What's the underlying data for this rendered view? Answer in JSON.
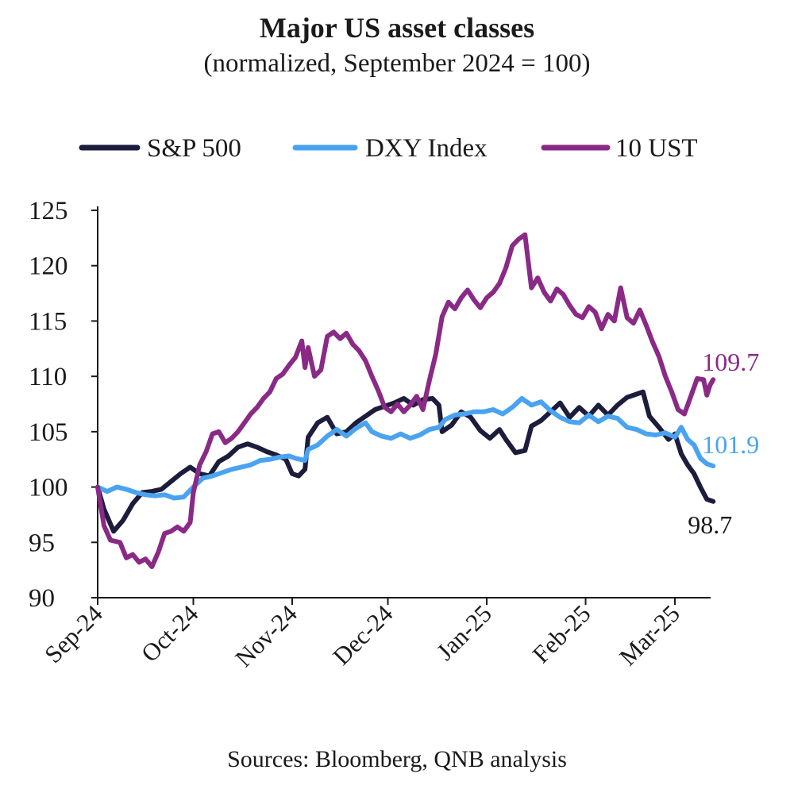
{
  "chart_data": {
    "type": "line",
    "title": "Major US asset classes",
    "subtitle": "(normalized, September 2024 = 100)",
    "source": "Sources: Bloomberg, QNB analysis",
    "ylim": [
      90,
      125
    ],
    "yticks": [
      90,
      95,
      100,
      105,
      110,
      115,
      120,
      125
    ],
    "xlim": [
      "2024-09-01",
      "2025-03-14"
    ],
    "xticks": [
      {
        "date": "2024-09-01",
        "label": "Sep-24"
      },
      {
        "date": "2024-10-01",
        "label": "Oct-24"
      },
      {
        "date": "2024-11-01",
        "label": "Nov-24"
      },
      {
        "date": "2024-12-01",
        "label": "Dec-24"
      },
      {
        "date": "2025-01-01",
        "label": "Jan-25"
      },
      {
        "date": "2025-02-01",
        "label": "Feb-25"
      },
      {
        "date": "2025-03-01",
        "label": "Mar-25"
      }
    ],
    "legend_position": "top",
    "grid": false,
    "series": [
      {
        "name": "S&P 500",
        "color": "#1c1c3c",
        "end_label": "98.7",
        "points": [
          [
            "2024-09-01",
            100.0
          ],
          [
            "2024-09-03",
            98.0
          ],
          [
            "2024-09-06",
            96.0
          ],
          [
            "2024-09-09",
            97.0
          ],
          [
            "2024-09-12",
            98.5
          ],
          [
            "2024-09-15",
            99.5
          ],
          [
            "2024-09-18",
            99.6
          ],
          [
            "2024-09-21",
            99.8
          ],
          [
            "2024-09-24",
            100.5
          ],
          [
            "2024-09-27",
            101.2
          ],
          [
            "2024-09-30",
            101.8
          ],
          [
            "2024-10-03",
            101.2
          ],
          [
            "2024-10-06",
            101.0
          ],
          [
            "2024-10-09",
            102.3
          ],
          [
            "2024-10-12",
            102.8
          ],
          [
            "2024-10-15",
            103.6
          ],
          [
            "2024-10-18",
            103.9
          ],
          [
            "2024-10-21",
            103.6
          ],
          [
            "2024-10-24",
            103.2
          ],
          [
            "2024-10-27",
            102.9
          ],
          [
            "2024-10-30",
            102.5
          ],
          [
            "2024-11-01",
            101.2
          ],
          [
            "2024-11-03",
            101.0
          ],
          [
            "2024-11-05",
            101.6
          ],
          [
            "2024-11-06",
            104.5
          ],
          [
            "2024-11-09",
            105.8
          ],
          [
            "2024-11-12",
            106.3
          ],
          [
            "2024-11-15",
            104.8
          ],
          [
            "2024-11-18",
            105.0
          ],
          [
            "2024-11-21",
            105.8
          ],
          [
            "2024-11-24",
            106.4
          ],
          [
            "2024-11-27",
            107.0
          ],
          [
            "2024-11-30",
            107.3
          ],
          [
            "2024-12-03",
            107.6
          ],
          [
            "2024-12-06",
            108.0
          ],
          [
            "2024-12-09",
            107.4
          ],
          [
            "2024-12-12",
            107.9
          ],
          [
            "2024-12-15",
            108.0
          ],
          [
            "2024-12-17",
            107.4
          ],
          [
            "2024-12-18",
            105.0
          ],
          [
            "2024-12-21",
            105.6
          ],
          [
            "2024-12-24",
            106.8
          ],
          [
            "2024-12-27",
            106.3
          ],
          [
            "2024-12-30",
            105.1
          ],
          [
            "2025-01-02",
            104.4
          ],
          [
            "2025-01-05",
            105.2
          ],
          [
            "2025-01-07",
            104.3
          ],
          [
            "2025-01-10",
            103.1
          ],
          [
            "2025-01-13",
            103.3
          ],
          [
            "2025-01-15",
            105.5
          ],
          [
            "2025-01-18",
            106.0
          ],
          [
            "2025-01-21",
            106.8
          ],
          [
            "2025-01-24",
            107.6
          ],
          [
            "2025-01-27",
            106.3
          ],
          [
            "2025-01-30",
            107.2
          ],
          [
            "2025-02-02",
            106.4
          ],
          [
            "2025-02-05",
            107.4
          ],
          [
            "2025-02-08",
            106.5
          ],
          [
            "2025-02-11",
            107.4
          ],
          [
            "2025-02-14",
            108.1
          ],
          [
            "2025-02-17",
            108.4
          ],
          [
            "2025-02-19",
            108.6
          ],
          [
            "2025-02-21",
            106.4
          ],
          [
            "2025-02-24",
            105.4
          ],
          [
            "2025-02-27",
            104.3
          ],
          [
            "2025-03-01",
            104.8
          ],
          [
            "2025-03-03",
            103.0
          ],
          [
            "2025-03-05",
            102.0
          ],
          [
            "2025-03-07",
            101.2
          ],
          [
            "2025-03-09",
            100.0
          ],
          [
            "2025-03-11",
            98.9
          ],
          [
            "2025-03-13",
            98.7
          ]
        ]
      },
      {
        "name": "DXY Index",
        "color": "#4aa3f0",
        "end_label": "101.9",
        "points": [
          [
            "2024-09-01",
            100.0
          ],
          [
            "2024-09-04",
            99.6
          ],
          [
            "2024-09-07",
            100.0
          ],
          [
            "2024-09-10",
            99.8
          ],
          [
            "2024-09-13",
            99.5
          ],
          [
            "2024-09-16",
            99.3
          ],
          [
            "2024-09-19",
            99.2
          ],
          [
            "2024-09-22",
            99.3
          ],
          [
            "2024-09-25",
            99.0
          ],
          [
            "2024-09-28",
            99.1
          ],
          [
            "2024-10-01",
            100.0
          ],
          [
            "2024-10-04",
            100.8
          ],
          [
            "2024-10-07",
            101.0
          ],
          [
            "2024-10-10",
            101.3
          ],
          [
            "2024-10-13",
            101.6
          ],
          [
            "2024-10-16",
            101.8
          ],
          [
            "2024-10-19",
            102.0
          ],
          [
            "2024-10-22",
            102.4
          ],
          [
            "2024-10-25",
            102.5
          ],
          [
            "2024-10-28",
            102.7
          ],
          [
            "2024-10-31",
            102.8
          ],
          [
            "2024-11-02",
            102.6
          ],
          [
            "2024-11-05",
            102.4
          ],
          [
            "2024-11-06",
            103.4
          ],
          [
            "2024-11-09",
            103.8
          ],
          [
            "2024-11-12",
            104.6
          ],
          [
            "2024-11-15",
            105.2
          ],
          [
            "2024-11-18",
            104.6
          ],
          [
            "2024-11-21",
            105.3
          ],
          [
            "2024-11-24",
            105.8
          ],
          [
            "2024-11-26",
            105.0
          ],
          [
            "2024-11-29",
            104.6
          ],
          [
            "2024-12-02",
            104.4
          ],
          [
            "2024-12-05",
            104.8
          ],
          [
            "2024-12-08",
            104.4
          ],
          [
            "2024-12-11",
            104.7
          ],
          [
            "2024-12-14",
            105.2
          ],
          [
            "2024-12-17",
            105.4
          ],
          [
            "2024-12-19",
            106.1
          ],
          [
            "2024-12-22",
            106.5
          ],
          [
            "2024-12-25",
            106.6
          ],
          [
            "2024-12-28",
            106.8
          ],
          [
            "2024-12-31",
            106.8
          ],
          [
            "2025-01-03",
            107.0
          ],
          [
            "2025-01-06",
            106.6
          ],
          [
            "2025-01-09",
            107.2
          ],
          [
            "2025-01-12",
            108.0
          ],
          [
            "2025-01-15",
            107.4
          ],
          [
            "2025-01-18",
            107.7
          ],
          [
            "2025-01-21",
            106.9
          ],
          [
            "2025-01-24",
            106.3
          ],
          [
            "2025-01-27",
            105.9
          ],
          [
            "2025-01-30",
            105.8
          ],
          [
            "2025-02-02",
            106.5
          ],
          [
            "2025-02-05",
            105.9
          ],
          [
            "2025-02-08",
            106.4
          ],
          [
            "2025-02-11",
            106.2
          ],
          [
            "2025-02-14",
            105.4
          ],
          [
            "2025-02-17",
            105.2
          ],
          [
            "2025-02-20",
            104.8
          ],
          [
            "2025-02-23",
            104.7
          ],
          [
            "2025-02-26",
            104.9
          ],
          [
            "2025-03-01",
            104.5
          ],
          [
            "2025-03-03",
            105.4
          ],
          [
            "2025-03-05",
            104.3
          ],
          [
            "2025-03-07",
            103.8
          ],
          [
            "2025-03-09",
            102.6
          ],
          [
            "2025-03-11",
            102.1
          ],
          [
            "2025-03-13",
            101.9
          ]
        ]
      },
      {
        "name": "10 UST",
        "color": "#8a2a86",
        "end_label": "109.7",
        "points": [
          [
            "2024-09-01",
            100.0
          ],
          [
            "2024-09-03",
            96.5
          ],
          [
            "2024-09-05",
            95.2
          ],
          [
            "2024-09-08",
            95.0
          ],
          [
            "2024-09-10",
            93.6
          ],
          [
            "2024-09-12",
            93.9
          ],
          [
            "2024-09-14",
            93.2
          ],
          [
            "2024-09-16",
            93.5
          ],
          [
            "2024-09-18",
            92.8
          ],
          [
            "2024-09-20",
            94.1
          ],
          [
            "2024-09-22",
            95.8
          ],
          [
            "2024-09-24",
            96.0
          ],
          [
            "2024-09-26",
            96.4
          ],
          [
            "2024-09-28",
            96.0
          ],
          [
            "2024-09-30",
            96.8
          ],
          [
            "2024-10-01",
            99.5
          ],
          [
            "2024-10-03",
            102.0
          ],
          [
            "2024-10-05",
            103.2
          ],
          [
            "2024-10-07",
            104.8
          ],
          [
            "2024-10-09",
            105.0
          ],
          [
            "2024-10-11",
            104.0
          ],
          [
            "2024-10-13",
            104.4
          ],
          [
            "2024-10-15",
            105.0
          ],
          [
            "2024-10-17",
            105.8
          ],
          [
            "2024-10-19",
            106.6
          ],
          [
            "2024-10-21",
            107.2
          ],
          [
            "2024-10-23",
            108.0
          ],
          [
            "2024-10-25",
            108.6
          ],
          [
            "2024-10-27",
            109.8
          ],
          [
            "2024-10-29",
            110.2
          ],
          [
            "2024-10-31",
            111.0
          ],
          [
            "2024-11-02",
            111.7
          ],
          [
            "2024-11-04",
            113.2
          ],
          [
            "2024-11-05",
            110.8
          ],
          [
            "2024-11-06",
            112.6
          ],
          [
            "2024-11-08",
            110.0
          ],
          [
            "2024-11-10",
            110.6
          ],
          [
            "2024-11-12",
            113.6
          ],
          [
            "2024-11-14",
            114.0
          ],
          [
            "2024-11-16",
            113.4
          ],
          [
            "2024-11-18",
            113.9
          ],
          [
            "2024-11-20",
            112.9
          ],
          [
            "2024-11-22",
            112.3
          ],
          [
            "2024-11-24",
            111.4
          ],
          [
            "2024-11-26",
            110.0
          ],
          [
            "2024-11-28",
            108.7
          ],
          [
            "2024-11-30",
            107.2
          ],
          [
            "2024-12-02",
            106.8
          ],
          [
            "2024-12-04",
            107.5
          ],
          [
            "2024-12-06",
            106.8
          ],
          [
            "2024-12-08",
            107.4
          ],
          [
            "2024-12-10",
            108.2
          ],
          [
            "2024-12-12",
            107.0
          ],
          [
            "2024-12-14",
            109.6
          ],
          [
            "2024-12-16",
            112.0
          ],
          [
            "2024-12-18",
            115.4
          ],
          [
            "2024-12-20",
            116.7
          ],
          [
            "2024-12-22",
            116.1
          ],
          [
            "2024-12-24",
            117.1
          ],
          [
            "2024-12-26",
            117.8
          ],
          [
            "2024-12-28",
            116.9
          ],
          [
            "2024-12-30",
            116.2
          ],
          [
            "2025-01-01",
            117.1
          ],
          [
            "2025-01-03",
            117.6
          ],
          [
            "2025-01-05",
            118.4
          ],
          [
            "2025-01-07",
            119.8
          ],
          [
            "2025-01-09",
            121.8
          ],
          [
            "2025-01-11",
            122.4
          ],
          [
            "2025-01-13",
            122.8
          ],
          [
            "2025-01-15",
            118.0
          ],
          [
            "2025-01-17",
            118.9
          ],
          [
            "2025-01-19",
            117.6
          ],
          [
            "2025-01-21",
            116.8
          ],
          [
            "2025-01-23",
            117.9
          ],
          [
            "2025-01-25",
            117.4
          ],
          [
            "2025-01-27",
            116.4
          ],
          [
            "2025-01-29",
            115.6
          ],
          [
            "2025-01-31",
            115.3
          ],
          [
            "2025-02-02",
            116.3
          ],
          [
            "2025-02-04",
            115.8
          ],
          [
            "2025-02-06",
            114.3
          ],
          [
            "2025-02-08",
            115.6
          ],
          [
            "2025-02-10",
            115.0
          ],
          [
            "2025-02-12",
            118.0
          ],
          [
            "2025-02-14",
            115.3
          ],
          [
            "2025-02-16",
            114.8
          ],
          [
            "2025-02-18",
            116.0
          ],
          [
            "2025-02-20",
            114.6
          ],
          [
            "2025-02-22",
            113.1
          ],
          [
            "2025-02-24",
            111.8
          ],
          [
            "2025-02-26",
            110.0
          ],
          [
            "2025-02-28",
            108.6
          ],
          [
            "2025-03-02",
            107.0
          ],
          [
            "2025-03-04",
            106.6
          ],
          [
            "2025-03-06",
            108.2
          ],
          [
            "2025-03-08",
            109.8
          ],
          [
            "2025-03-10",
            109.7
          ],
          [
            "2025-03-11",
            108.3
          ],
          [
            "2025-03-12",
            109.2
          ],
          [
            "2025-03-13",
            109.7
          ]
        ]
      }
    ]
  }
}
